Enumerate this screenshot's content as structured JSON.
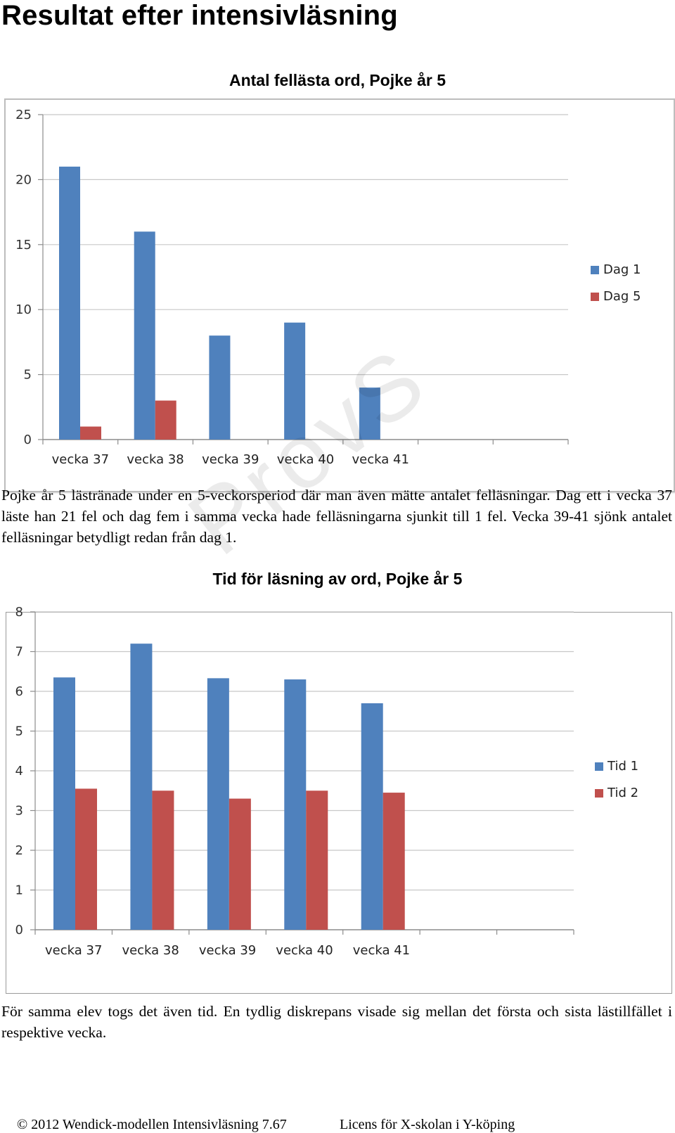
{
  "page": {
    "title": "Resultat efter intensivläsning",
    "paragraph1": "Pojke år 5 lästränade under en 5-veckorsperiod där man även mätte antalet felläsningar. Dag ett i vecka 37 läste han 21 fel och dag fem i samma vecka hade felläsningarna sjunkit till 1 fel. Vecka 39-41 sjönk antalet felläsningar betydligt redan från dag 1.",
    "paragraph2": "För samma elev togs det även tid. En tydlig diskrepans visade sig mellan det första och sista lästillfället i respektive vecka.",
    "footer_left": "© 2012 Wendick-modellen Intensivläsning 7.67",
    "footer_right": "Licens för X-skolan i Y-köping"
  },
  "chart_data": [
    {
      "type": "bar",
      "title": "Antal fellästa ord, Pojke år 5",
      "categories": [
        "vecka 37",
        "vecka 38",
        "vecka 39",
        "vecka 40",
        "vecka 41",
        "",
        ""
      ],
      "series": [
        {
          "name": "Dag 1",
          "color": "#4f81bd",
          "values": [
            21,
            16,
            8,
            9,
            4,
            null,
            null
          ]
        },
        {
          "name": "Dag 5",
          "color": "#c0504d",
          "values": [
            1,
            3,
            null,
            null,
            null,
            null,
            null
          ]
        }
      ],
      "ylim": [
        0,
        25
      ],
      "yticks": [
        0,
        5,
        10,
        15,
        20,
        25
      ],
      "grid": true,
      "legend": "right"
    },
    {
      "type": "bar",
      "title": "Tid för läsning av ord, Pojke år 5",
      "categories": [
        "vecka 37",
        "vecka 38",
        "vecka 39",
        "vecka 40",
        "vecka 41",
        "",
        ""
      ],
      "series": [
        {
          "name": "Tid 1",
          "color": "#4f81bd",
          "values": [
            6.35,
            7.2,
            6.33,
            6.3,
            5.7,
            null,
            null
          ]
        },
        {
          "name": "Tid 2",
          "color": "#c0504d",
          "values": [
            3.55,
            3.5,
            3.3,
            3.5,
            3.45,
            null,
            null
          ]
        }
      ],
      "ylim": [
        0,
        8
      ],
      "yticks": [
        0,
        1,
        2,
        3,
        4,
        5,
        6,
        7,
        8
      ],
      "grid": true,
      "legend": "right"
    }
  ]
}
